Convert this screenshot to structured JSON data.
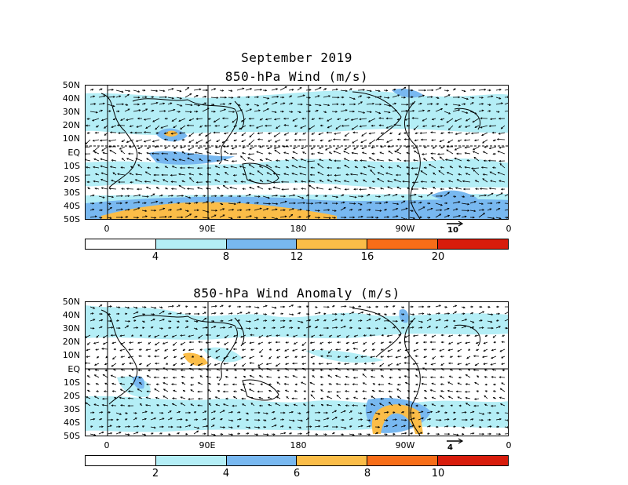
{
  "header": {
    "month_title": "September 2019",
    "panel1_title": "850-hPa Wind (m/s)",
    "panel2_title": "850-hPa Wind Anomaly (m/s)"
  },
  "axes": {
    "lat_labels": [
      "50N",
      "40N",
      "30N",
      "20N",
      "10N",
      "EQ",
      "10S",
      "20S",
      "30S",
      "40S",
      "50S"
    ],
    "lon_labels": [
      "0",
      "90E",
      "180",
      "90W",
      "0"
    ]
  },
  "panel1": {
    "reference_vector_label": "10",
    "colorbar": {
      "labels": [
        "4",
        "8",
        "12",
        "16",
        "20"
      ],
      "colors": [
        "#ffffff",
        "#b4eef6",
        "#78b8f0",
        "#fbbd48",
        "#f76d18",
        "#d81c0c"
      ]
    }
  },
  "panel2": {
    "reference_vector_label": "4",
    "colorbar": {
      "labels": [
        "2",
        "4",
        "6",
        "8",
        "10"
      ],
      "colors": [
        "#ffffff",
        "#b4eef6",
        "#78b8f0",
        "#fbbd48",
        "#f76d18",
        "#d81c0c"
      ]
    }
  },
  "colors": {
    "shade_light": "#b4eef6",
    "shade_mid": "#78b8f0",
    "shade_orange": "#fbbd48",
    "shade_red": "#f76d18"
  }
}
